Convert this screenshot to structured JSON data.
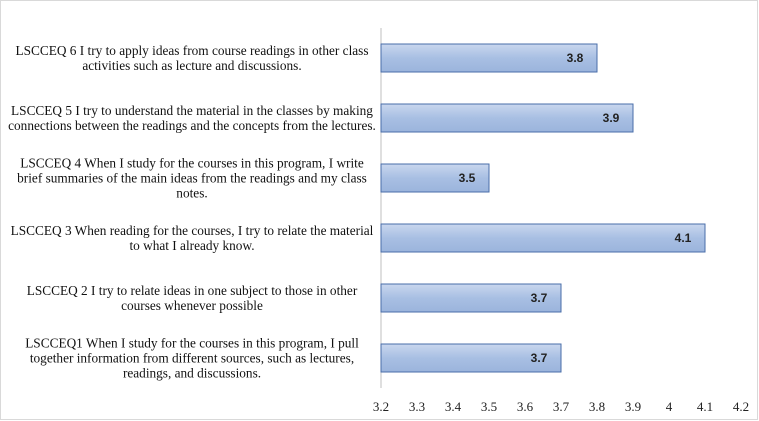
{
  "chart_data": {
    "type": "barh",
    "categories": [
      "LSCCEQ 6 I try to apply ideas from course readings in other class activities such as lecture and discussions.",
      "LSCCEQ 5 I try to understand the material in the classes by making connections between the readings and the concepts from the lectures.",
      "LSCCEQ 4 When I study for the courses in this program, I write brief summaries of the main ideas from the readings and my class notes.",
      "LSCCEQ 3 When reading for the courses, I try to relate the material to what I already know.",
      "LSCCEQ 2 I try to relate ideas in one subject to those in other courses whenever possible",
      "LSCCEQ1 When I study for the courses in this program, I pull together information from different sources, such as lectures, readings, and discussions."
    ],
    "values": [
      3.8,
      3.9,
      3.5,
      4.1,
      3.7,
      3.7
    ],
    "color": "#a8bfe3",
    "xlim": [
      3.2,
      4.2
    ],
    "xticks": [
      3.2,
      3.3,
      3.4,
      3.5,
      3.6,
      3.7,
      3.8,
      3.9,
      4,
      4.1,
      4.2
    ],
    "grid": false
  }
}
